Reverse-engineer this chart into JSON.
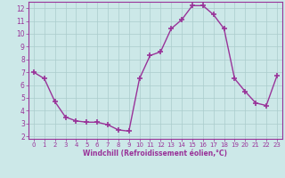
{
  "x": [
    0,
    1,
    2,
    3,
    4,
    5,
    6,
    7,
    8,
    9,
    10,
    11,
    12,
    13,
    14,
    15,
    16,
    17,
    18,
    19,
    20,
    21,
    22,
    23
  ],
  "y": [
    7.0,
    6.5,
    4.7,
    3.5,
    3.2,
    3.1,
    3.1,
    2.9,
    2.5,
    2.4,
    6.5,
    8.3,
    8.6,
    10.4,
    11.1,
    12.2,
    12.2,
    11.5,
    10.4,
    6.5,
    5.5,
    4.6,
    4.4,
    6.7
  ],
  "line_color": "#993399",
  "marker": "+",
  "marker_size": 5,
  "bg_color": "#cce8e8",
  "grid_color": "#aacccc",
  "xlabel": "Windchill (Refroidissement éolien,°C)",
  "xlabel_color": "#993399",
  "tick_color": "#993399",
  "ylim": [
    1.8,
    12.5
  ],
  "xlim": [
    -0.5,
    23.5
  ],
  "yticks": [
    2,
    3,
    4,
    5,
    6,
    7,
    8,
    9,
    10,
    11,
    12
  ],
  "xticks": [
    0,
    1,
    2,
    3,
    4,
    5,
    6,
    7,
    8,
    9,
    10,
    11,
    12,
    13,
    14,
    15,
    16,
    17,
    18,
    19,
    20,
    21,
    22,
    23
  ]
}
